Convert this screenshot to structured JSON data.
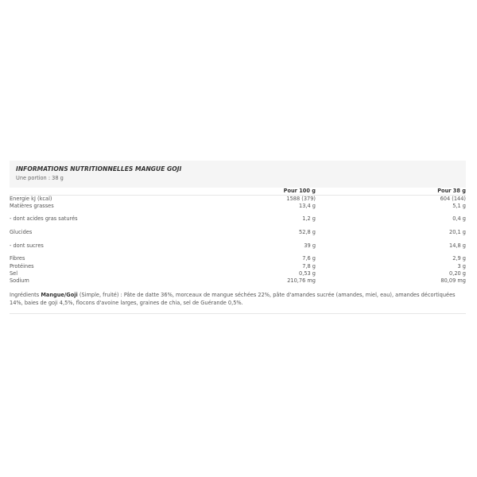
{
  "title": "INFORMATIONS NUTRITIONNELLES MANGUE GOJI",
  "portion": "Une portion : 38 g",
  "columns": [
    "Pour 100 g",
    "Pour 38 g"
  ],
  "rows": [
    {
      "label": "Energie kJ (kcal)",
      "per100": "1588 (379)",
      "perPortion": "604 (144)"
    },
    {
      "label": "Matières grasses",
      "per100": "13,4 g",
      "perPortion": "5,1 g"
    },
    {
      "label": "- dont acides gras saturés",
      "per100": "1,2 g",
      "perPortion": "0,4 g"
    },
    {
      "label": "Glucides",
      "per100": "52,8 g",
      "perPortion": "20,1 g"
    },
    {
      "label": "- dont sucres",
      "per100": "39 g",
      "perPortion": "14,8 g"
    },
    {
      "label": "Fibres",
      "per100": "7,6 g",
      "perPortion": "2,9 g"
    },
    {
      "label": "Protéines",
      "per100": "7,8 g",
      "perPortion": "3 g"
    },
    {
      "label": "Sel",
      "per100": "0,53 g",
      "perPortion": "0,20 g"
    },
    {
      "label": "Sodium",
      "per100": "210,76 mg",
      "perPortion": "80,09 mg"
    }
  ],
  "ingredients": {
    "prefix": "Ingrédients ",
    "product": "Mangue/Goji",
    "text": " (Simple, fruité) : Pâte de datte 36%, morceaux de mangue séchées 22%, pâte d'amandes sucrée (amandes, miel, eau), amandes décortiquées 14%, baies de goji 4,5%, flocons d'avoine larges, graines de chia, sel de Guérande 0,5%."
  }
}
